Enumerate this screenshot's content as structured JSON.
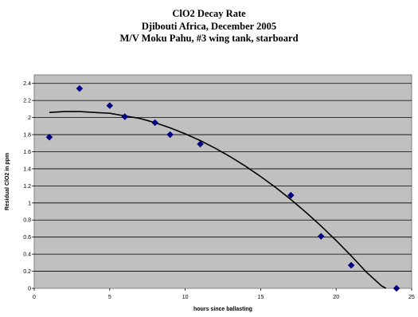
{
  "chart_data": {
    "type": "scatter",
    "title_lines": [
      "ClO2 Decay Rate",
      "Djibouti Africa, December 2005",
      "M/V Moku Pahu, #3 wing tank, starboard"
    ],
    "xlabel": "hours since ballasting",
    "ylabel": "Residual ClO2 in ppm",
    "xlim": [
      0,
      25
    ],
    "ylim": [
      0,
      2.5
    ],
    "x_ticks": [
      0,
      5,
      10,
      15,
      20,
      25
    ],
    "y_ticks": [
      0,
      0.2,
      0.4,
      0.6,
      0.8,
      1,
      1.2,
      1.4,
      1.6,
      1.8,
      2,
      2.2,
      2.4
    ],
    "x_tick_labels": [
      "0",
      "5",
      "10",
      "15",
      "20",
      "25"
    ],
    "y_tick_labels": [
      "0",
      "0.2",
      "0.4",
      "0.6",
      "0.8",
      "1",
      "1.2",
      "1.4",
      "1.6",
      "1.8",
      "2",
      "2.2",
      "2.4"
    ],
    "grid": true,
    "plot_background": "#c0c0c0",
    "marker_color": "#000080",
    "trendline_color": "#000000",
    "series": [
      {
        "marker": "diamond",
        "x": [
          1,
          3,
          5,
          6,
          8,
          9,
          11,
          17,
          19,
          21,
          24
        ],
        "y": [
          1.77,
          2.34,
          2.14,
          2.01,
          1.94,
          1.8,
          1.69,
          1.09,
          0.61,
          0.27,
          0.0
        ]
      }
    ],
    "trendline": {
      "type": "polynomial",
      "x": [
        1,
        2,
        3,
        4,
        5,
        6,
        7,
        8,
        9,
        10,
        11,
        12,
        13,
        14,
        15,
        16,
        17,
        18,
        19,
        20,
        21,
        22,
        23,
        23.3
      ],
      "y": [
        2.06,
        2.07,
        2.07,
        2.06,
        2.05,
        2.02,
        1.99,
        1.94,
        1.88,
        1.81,
        1.73,
        1.64,
        1.54,
        1.43,
        1.31,
        1.18,
        1.04,
        0.89,
        0.73,
        0.56,
        0.38,
        0.19,
        0.03,
        0.0
      ]
    }
  }
}
